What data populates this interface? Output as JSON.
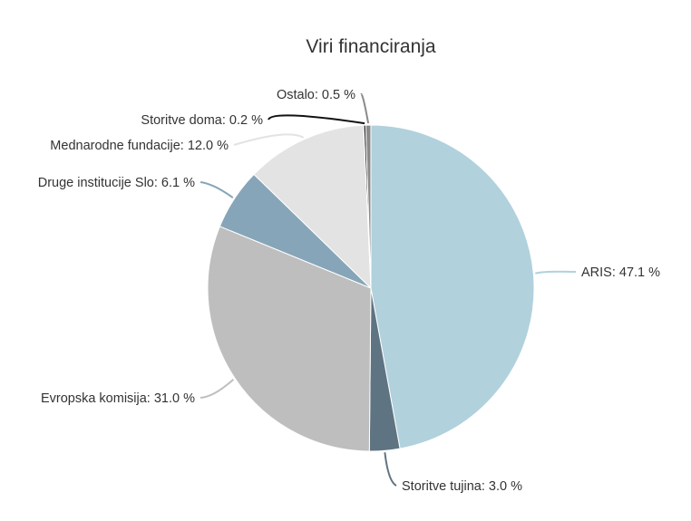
{
  "chart_data": {
    "type": "pie",
    "title": "Viri financiranja",
    "unit": "%",
    "slices": [
      {
        "label": "ARIS",
        "value": 47.1,
        "display": "ARIS: 47.1 %",
        "color": "#b1d1dc",
        "line_color": "#b1d1dc"
      },
      {
        "label": "Storitve tujina",
        "value": 3.0,
        "display": "Storitve tujina: 3.0 %",
        "color": "#5f7482",
        "line_color": "#5f7482"
      },
      {
        "label": "Evropska komisija",
        "value": 31.0,
        "display": "Evropska komisija: 31.0 %",
        "color": "#bebebe",
        "line_color": "#bebebe"
      },
      {
        "label": "Druge institucije Slo",
        "value": 6.1,
        "display": "Druge institucije Slo: 6.1 %",
        "color": "#86a5b8",
        "line_color": "#86a5b8"
      },
      {
        "label": "Mednarodne fundacije",
        "value": 12.0,
        "display": "Mednarodne fundacije: 12.0 %",
        "color": "#e3e3e3",
        "line_color": "#e3e3e3"
      },
      {
        "label": "Storitve doma",
        "value": 0.2,
        "display": "Storitve doma: 0.2 %",
        "color": "#111111",
        "line_color": "#111111"
      },
      {
        "label": "Ostalo",
        "value": 0.5,
        "display": "Ostalo: 0.5 %",
        "color": "#8a8a8a",
        "line_color": "#8a8a8a"
      }
    ]
  }
}
